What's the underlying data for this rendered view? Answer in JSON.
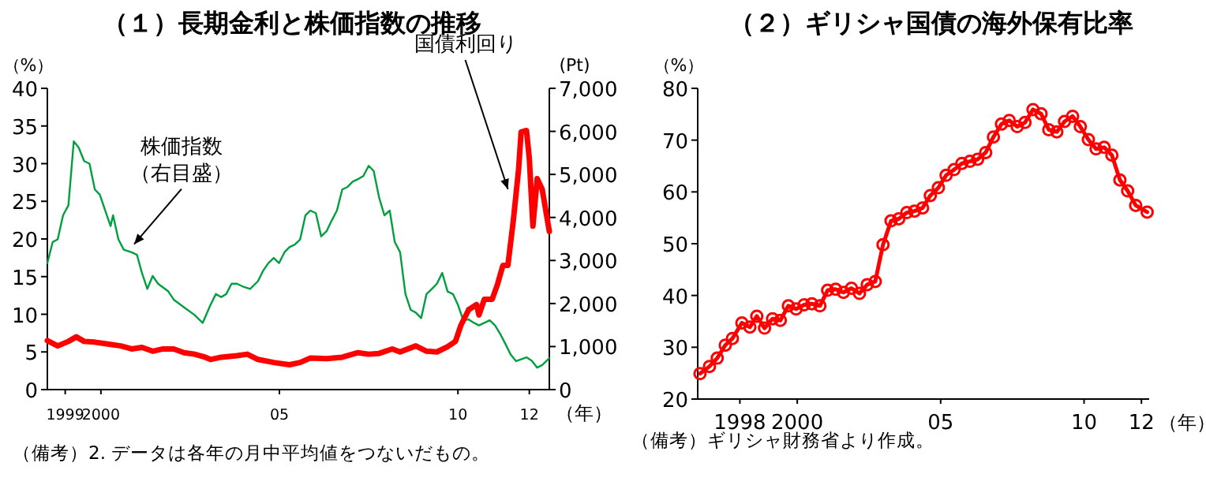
{
  "chart_data": [
    {
      "type": "line",
      "title": "（１）長期金利と株価指数の推移",
      "xlabel": "（年）",
      "ylabel": "（%）",
      "y2label": "(Pt)",
      "xlim": [
        1998.5,
        2012.56
      ],
      "xticks": [
        1999,
        2000,
        {
          "value": 2005,
          "label": "05"
        },
        {
          "value": 2010,
          "label": "10"
        },
        {
          "value": 2012,
          "label": "12"
        }
      ],
      "ylim": [
        0,
        40
      ],
      "yticks": [
        0,
        5,
        10,
        15,
        20,
        25,
        30,
        35,
        40
      ],
      "y2lim": [
        0,
        7000
      ],
      "y2ticks": [
        {
          "value": 0,
          "label": "0"
        },
        {
          "value": 1000,
          "label": "1,000"
        },
        {
          "value": 2000,
          "label": "2,000"
        },
        {
          "value": 3000,
          "label": "3,000"
        },
        {
          "value": 4000,
          "label": "4,000"
        },
        {
          "value": 5000,
          "label": "5,000"
        },
        {
          "value": 6000,
          "label": "6,000"
        },
        {
          "value": 7000,
          "label": "7,000"
        }
      ],
      "series": [
        {
          "color": "#ff0000",
          "x": [
            1998.5,
            1998.79,
            1999.09,
            1999.31,
            1999.53,
            1999.83,
            2000.12,
            2000.56,
            2000.86,
            2001.15,
            2001.45,
            2001.74,
            2002.04,
            2002.33,
            2002.63,
            2002.92,
            2003.07,
            2003.37,
            2003.81,
            2004.1,
            2004.4,
            2004.84,
            2005.28,
            2005.58,
            2005.87,
            2006.32,
            2006.76,
            2007.2,
            2007.5,
            2007.79,
            2008.16,
            2008.38,
            2008.82,
            2009.12,
            2009.41,
            2009.71,
            2009.93,
            2010.08,
            2010.3,
            2010.52,
            2010.59,
            2010.74,
            2010.96,
            2011.11,
            2011.26,
            2011.4,
            2011.55,
            2011.7,
            2011.77,
            2011.92,
            2012.0,
            2012.1,
            2012.22,
            2012.36,
            2012.56
          ],
          "values": [
            6.5,
            5.8,
            6.4,
            7.0,
            6.4,
            6.3,
            6.1,
            5.8,
            5.4,
            5.6,
            5.1,
            5.4,
            5.4,
            4.9,
            4.7,
            4.3,
            4.0,
            4.3,
            4.5,
            4.7,
            4.0,
            3.6,
            3.3,
            3.6,
            4.2,
            4.1,
            4.3,
            4.9,
            4.7,
            4.8,
            5.4,
            5.0,
            5.8,
            5.1,
            5.0,
            5.7,
            6.4,
            8.5,
            10.6,
            11.3,
            9.9,
            12.0,
            12.0,
            14.0,
            16.5,
            16.5,
            22.4,
            29.3,
            34.2,
            34.4,
            30.7,
            21.7,
            28.0,
            26.6,
            21.0
          ]
        },
        {
          "color": "#00a040",
          "axis": "y2",
          "x": [
            1998.5,
            1998.65,
            1998.79,
            1998.94,
            1999.09,
            1999.24,
            1999.38,
            1999.53,
            1999.68,
            1999.83,
            1999.97,
            2000.12,
            2000.27,
            2000.34,
            2000.49,
            2000.64,
            2000.86,
            2001.01,
            2001.15,
            2001.3,
            2001.45,
            2001.6,
            2001.89,
            2002.04,
            2002.33,
            2002.63,
            2002.85,
            2003.07,
            2003.22,
            2003.37,
            2003.51,
            2003.66,
            2003.81,
            2003.96,
            2004.18,
            2004.4,
            2004.55,
            2004.69,
            2004.84,
            2004.99,
            2005.14,
            2005.28,
            2005.43,
            2005.58,
            2005.73,
            2005.87,
            2006.02,
            2006.17,
            2006.32,
            2006.46,
            2006.61,
            2006.76,
            2006.91,
            2007.05,
            2007.2,
            2007.35,
            2007.5,
            2007.64,
            2007.79,
            2007.94,
            2008.09,
            2008.23,
            2008.38,
            2008.53,
            2008.68,
            2008.82,
            2008.97,
            2009.12,
            2009.27,
            2009.41,
            2009.56,
            2009.71,
            2009.86,
            2010.0,
            2010.15,
            2010.3,
            2010.45,
            2010.59,
            2010.89,
            2011.04,
            2011.18,
            2011.33,
            2011.48,
            2011.63,
            2011.92,
            2012.07,
            2012.22,
            2012.36,
            2012.56
          ],
          "values": [
            2940,
            3430,
            3490,
            4050,
            4280,
            5770,
            5620,
            5310,
            5250,
            4650,
            4530,
            4160,
            3800,
            4050,
            3490,
            3250,
            3190,
            3130,
            2710,
            2340,
            2640,
            2460,
            2280,
            2090,
            1910,
            1730,
            1550,
            1970,
            2220,
            2150,
            2220,
            2460,
            2460,
            2400,
            2340,
            2520,
            2770,
            2940,
            3060,
            2940,
            3190,
            3310,
            3370,
            3490,
            4050,
            4160,
            4100,
            3560,
            3680,
            3920,
            4160,
            4650,
            4710,
            4830,
            4890,
            4960,
            5200,
            5080,
            4470,
            4050,
            4160,
            3430,
            3190,
            2220,
            1850,
            1790,
            1660,
            2220,
            2340,
            2460,
            2710,
            2280,
            2220,
            1970,
            1610,
            1630,
            1550,
            1490,
            1610,
            1490,
            1300,
            1060,
            810,
            660,
            750,
            670,
            510,
            570,
            730
          ]
        }
      ],
      "annotations": [
        {
          "text": "株価指数（右目盛）",
          "x": 2000.93,
          "y": 19.3
        },
        {
          "text": "国債利回り",
          "x": 2011.4,
          "y": 26.6
        },
        "（備考）2. データは各年の月中平均値をつないだもの。"
      ]
    },
    {
      "type": "line",
      "title": "（２）ギリシャ国債の海外保有比率",
      "xlabel": "（年）",
      "ylabel": "（%）",
      "marker": "circle",
      "xlim": [
        1996.53,
        2012.27
      ],
      "xticks": [
        1998,
        2000,
        {
          "value": 2005,
          "label": "05"
        },
        {
          "value": 2010,
          "label": "10"
        },
        {
          "value": 2012,
          "label": "12"
        }
      ],
      "ylim": [
        20,
        80
      ],
      "yticks": [
        20,
        30,
        40,
        50,
        60,
        70,
        80
      ],
      "series": [
        {
          "color": "#ff0000",
          "x": [
            1996.61,
            1996.94,
            1997.21,
            1997.49,
            1997.74,
            1998.07,
            1998.35,
            1998.59,
            1998.86,
            1999.14,
            1999.41,
            1999.69,
            1999.96,
            2000.24,
            2000.51,
            2000.79,
            2001.06,
            2001.34,
            2001.61,
            2001.89,
            2002.17,
            2002.44,
            2002.72,
            2002.99,
            2003.27,
            2003.54,
            2003.82,
            2004.09,
            2004.37,
            2004.64,
            2004.92,
            2005.19,
            2005.47,
            2005.74,
            2006.02,
            2006.29,
            2006.57,
            2006.84,
            2007.12,
            2007.39,
            2007.67,
            2007.94,
            2008.22,
            2008.5,
            2008.77,
            2009.05,
            2009.32,
            2009.6,
            2009.87,
            2010.15,
            2010.42,
            2010.7,
            2010.97,
            2011.25,
            2011.52,
            2011.8,
            2012.2
          ],
          "values": [
            24.9,
            26.3,
            27.9,
            30.4,
            31.7,
            34.7,
            33.9,
            36.0,
            33.7,
            35.5,
            35.2,
            38.0,
            37.4,
            38.2,
            38.4,
            38.0,
            41.0,
            41.2,
            40.6,
            41.4,
            40.4,
            42.1,
            42.7,
            49.8,
            54.4,
            54.8,
            56.0,
            56.3,
            56.9,
            59.3,
            60.8,
            63.2,
            64.3,
            65.5,
            65.9,
            66.3,
            67.6,
            70.6,
            73.1,
            73.8,
            72.6,
            73.4,
            75.9,
            75.1,
            72.0,
            71.6,
            73.6,
            74.6,
            72.6,
            70.1,
            68.3,
            68.6,
            67.1,
            62.3,
            60.2,
            57.4,
            56.1
          ]
        }
      ],
      "annotations": [
        "（備考）ギリシャ財務省より作成。"
      ]
    }
  ]
}
